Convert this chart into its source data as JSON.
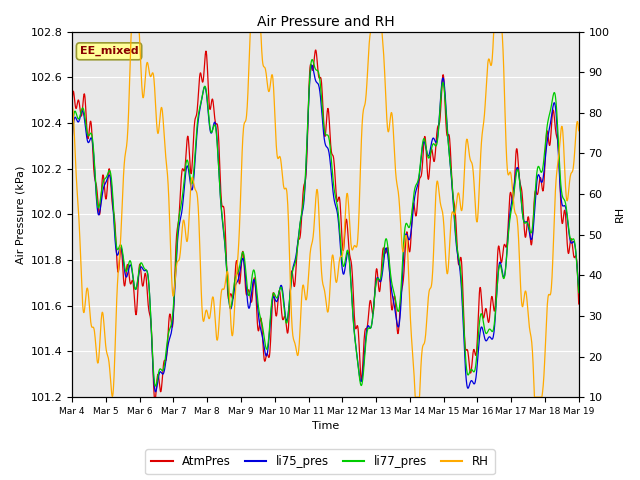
{
  "title": "Air Pressure and RH",
  "xlabel": "Time",
  "ylabel_left": "Air Pressure (kPa)",
  "ylabel_right": "RH",
  "annotation": "EE_mixed",
  "ylim_left": [
    101.2,
    102.8
  ],
  "ylim_right": [
    10,
    100
  ],
  "yticks_left": [
    101.2,
    101.4,
    101.6,
    101.8,
    102.0,
    102.2,
    102.4,
    102.6,
    102.8
  ],
  "yticks_right": [
    10,
    20,
    30,
    40,
    50,
    60,
    70,
    80,
    90,
    100
  ],
  "xtick_labels": [
    "Mar 4",
    "Mar 5",
    "Mar 6",
    "Mar 7",
    "Mar 8",
    "Mar 9",
    "Mar 10",
    "Mar 11",
    "Mar 12",
    "Mar 13",
    "Mar 14",
    "Mar 15",
    "Mar 16",
    "Mar 17",
    "Mar 18",
    "Mar 19"
  ],
  "colors": {
    "AtmPres": "#dd0000",
    "li75_pres": "#0000dd",
    "li77_pres": "#00cc00",
    "RH": "#ffaa00"
  },
  "legend_labels": [
    "AtmPres",
    "li75_pres",
    "li77_pres",
    "RH"
  ],
  "bg_color": "#e8e8e8",
  "grid_color": "#ffffff",
  "annotation_bg": "#ffff99",
  "annotation_fg": "#880000",
  "annotation_edge": "#999933",
  "figsize": [
    6.4,
    4.8
  ],
  "dpi": 100
}
